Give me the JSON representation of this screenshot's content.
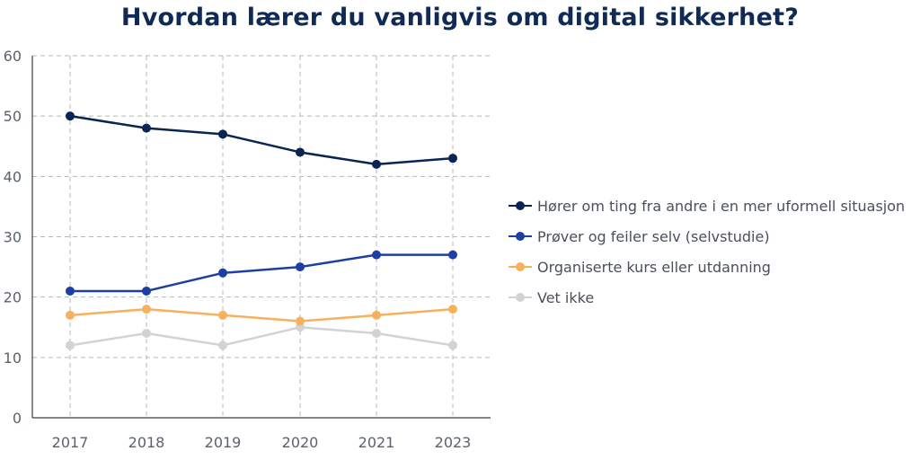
{
  "chart_data": {
    "type": "line",
    "title": "Hvordan lærer du vanligvis om digital sikkerhet?",
    "xlabel": "",
    "ylabel": "",
    "categories": [
      "2017",
      "2018",
      "2019",
      "2020",
      "2021",
      "2023"
    ],
    "ylim": [
      0,
      60
    ],
    "yticks": [
      0,
      10,
      20,
      30,
      40,
      50,
      60
    ],
    "grid": true,
    "legend_position": "right",
    "series": [
      {
        "name": "Hører om ting fra andre i en mer uformell situasjon",
        "color": "#0b2552",
        "values": [
          50,
          48,
          47,
          44,
          42,
          43
        ]
      },
      {
        "name": "Prøver og feiler selv (selvstudie)",
        "color": "#1d3fa3",
        "values": [
          21,
          21,
          24,
          25,
          27,
          27
        ]
      },
      {
        "name": "Organiserte kurs eller utdanning",
        "color": "#f7b15c",
        "values": [
          17,
          18,
          17,
          16,
          17,
          18
        ]
      },
      {
        "name": "Vet ikke",
        "color": "#d3d3d3",
        "values": [
          12,
          14,
          12,
          15,
          14,
          12
        ]
      }
    ]
  }
}
